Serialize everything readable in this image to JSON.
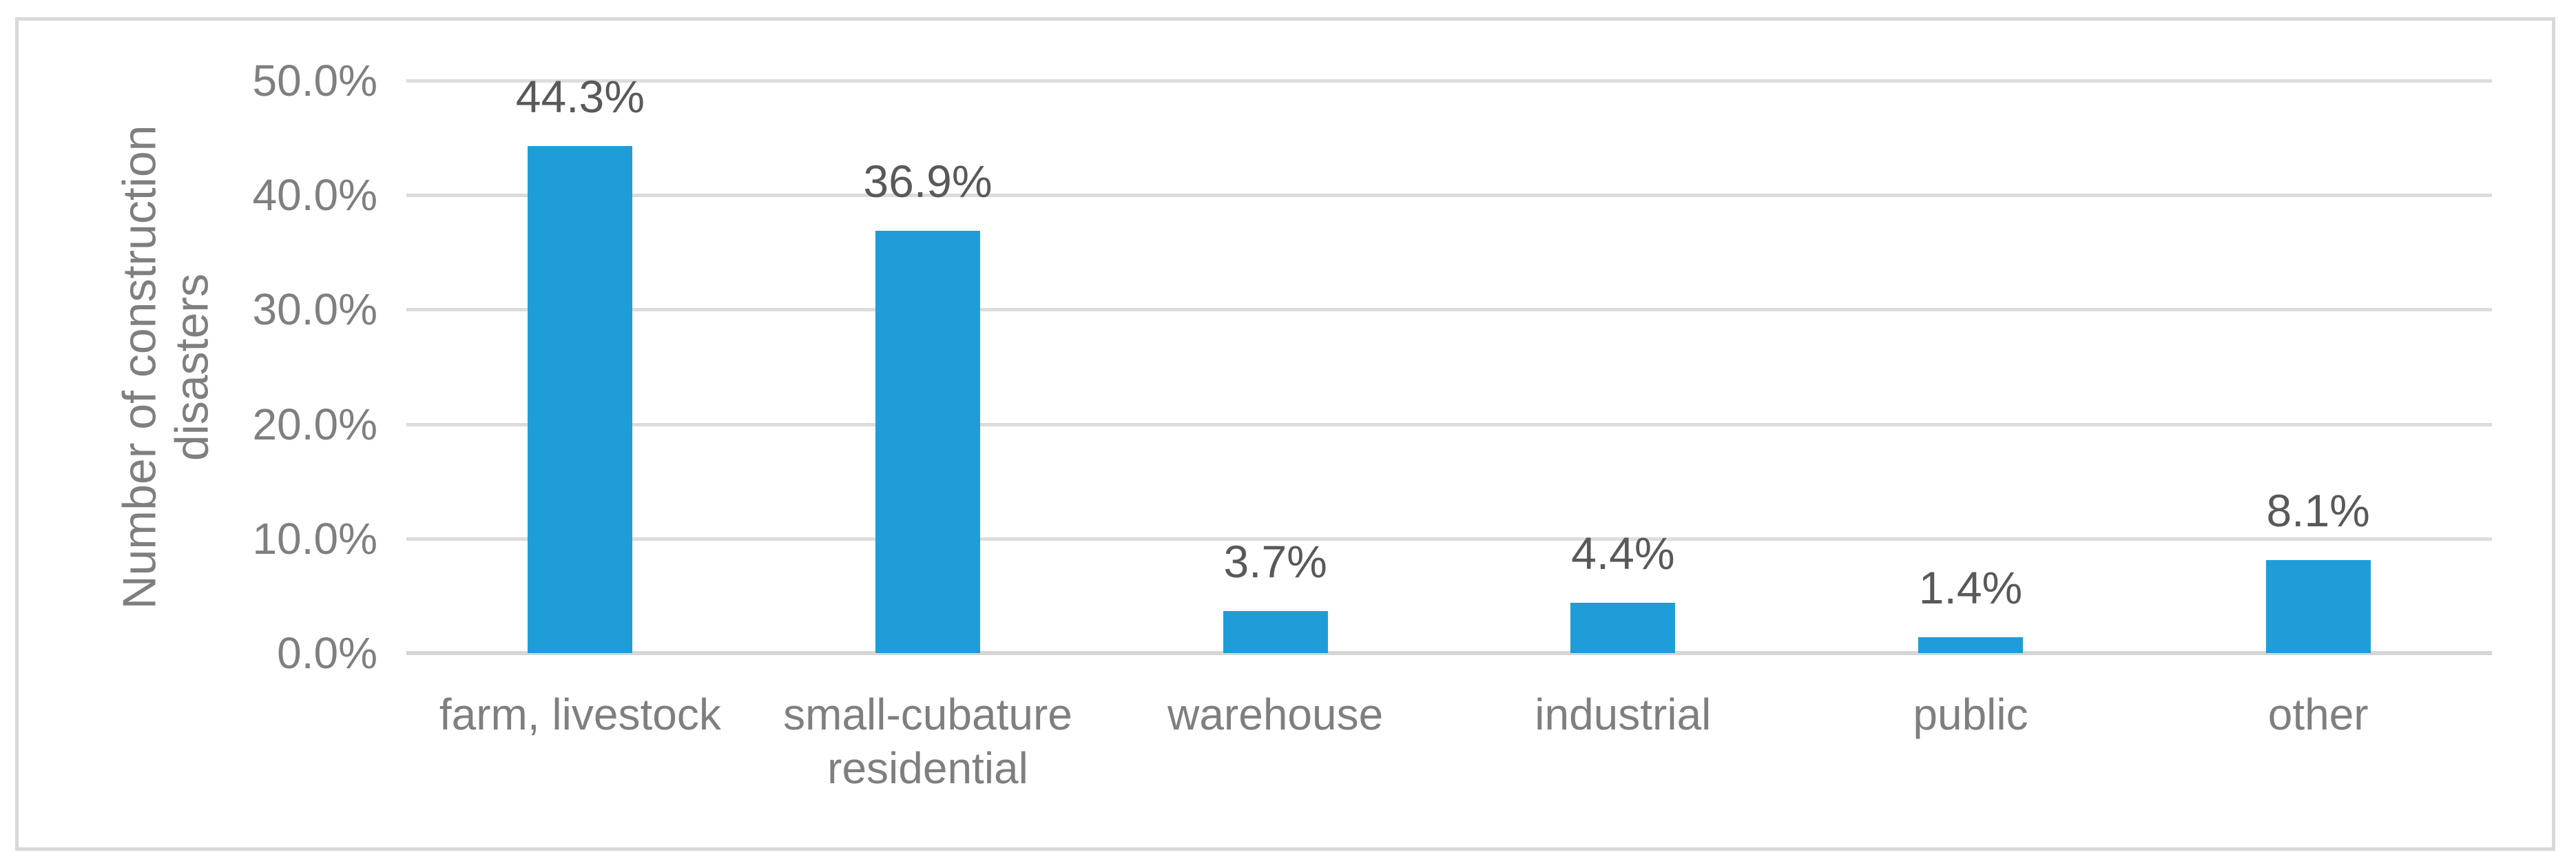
{
  "chart_data": {
    "type": "bar",
    "title": "",
    "categories": [
      "farm, livestock",
      "small-cubature residential",
      "warehouse",
      "industrial",
      "public",
      "other"
    ],
    "values": [
      44.3,
      36.9,
      3.7,
      4.4,
      1.4,
      8.1
    ],
    "data_labels": [
      "44.3%",
      "36.9%",
      "3.7%",
      "4.4%",
      "1.4%",
      "8.1%"
    ],
    "ylabel": "Number of construction disasters",
    "xlabel": "",
    "ylim": [
      0,
      50
    ],
    "ytick_step": 10,
    "yticks": [
      "0.0%",
      "10.0%",
      "20.0%",
      "30.0%",
      "40.0%",
      "50.0%"
    ],
    "grid": "horizontal gridlines at each 10% step",
    "legend": "none",
    "colors": {
      "bar": "#1F9DD8",
      "gridline": "#DCDCDC",
      "axis_line": "#D6D6D6",
      "chart_border": "#D9D9D9",
      "axis_text": "#7F7F7F",
      "data_label_text": "#595959",
      "background": "#FFFFFF"
    }
  }
}
